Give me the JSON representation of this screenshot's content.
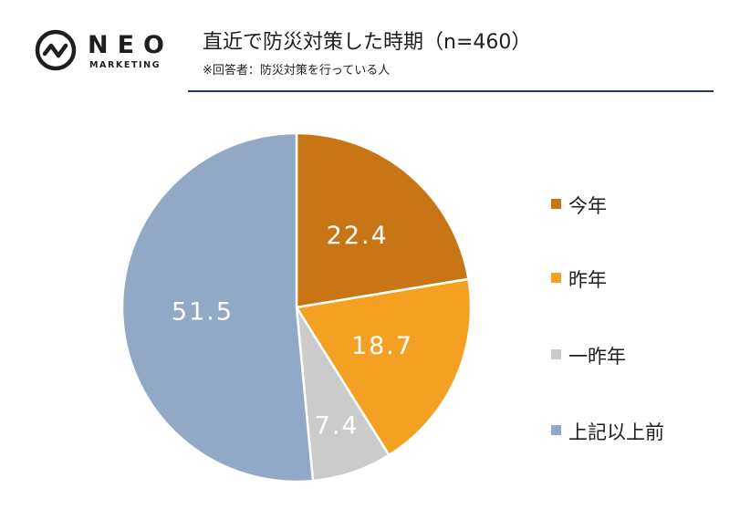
{
  "brand": {
    "name": "NEO",
    "sub": "MARKETING"
  },
  "header": {
    "title": "直近で防災対策した時期（n=460）",
    "subtitle": "※回答者：防災対策を行っている人"
  },
  "colors": {
    "accent_rule": "#2b3566",
    "today": "#c87516",
    "last_year": "#f4a023",
    "year_before": "#cbcbcb",
    "earlier": "#91a8c6"
  },
  "chart_data": {
    "type": "pie",
    "slices": [
      {
        "label": "今年",
        "value": 22.4,
        "color": "#c87516"
      },
      {
        "label": "昨年",
        "value": 18.7,
        "color": "#f4a023"
      },
      {
        "label": "一昨年",
        "value": 7.4,
        "color": "#cbcbcb"
      },
      {
        "label": "上記以上前",
        "value": 51.5,
        "color": "#91a8c6"
      }
    ],
    "legend_placement": "right",
    "start": "12 o'clock",
    "direction": "clockwise"
  }
}
